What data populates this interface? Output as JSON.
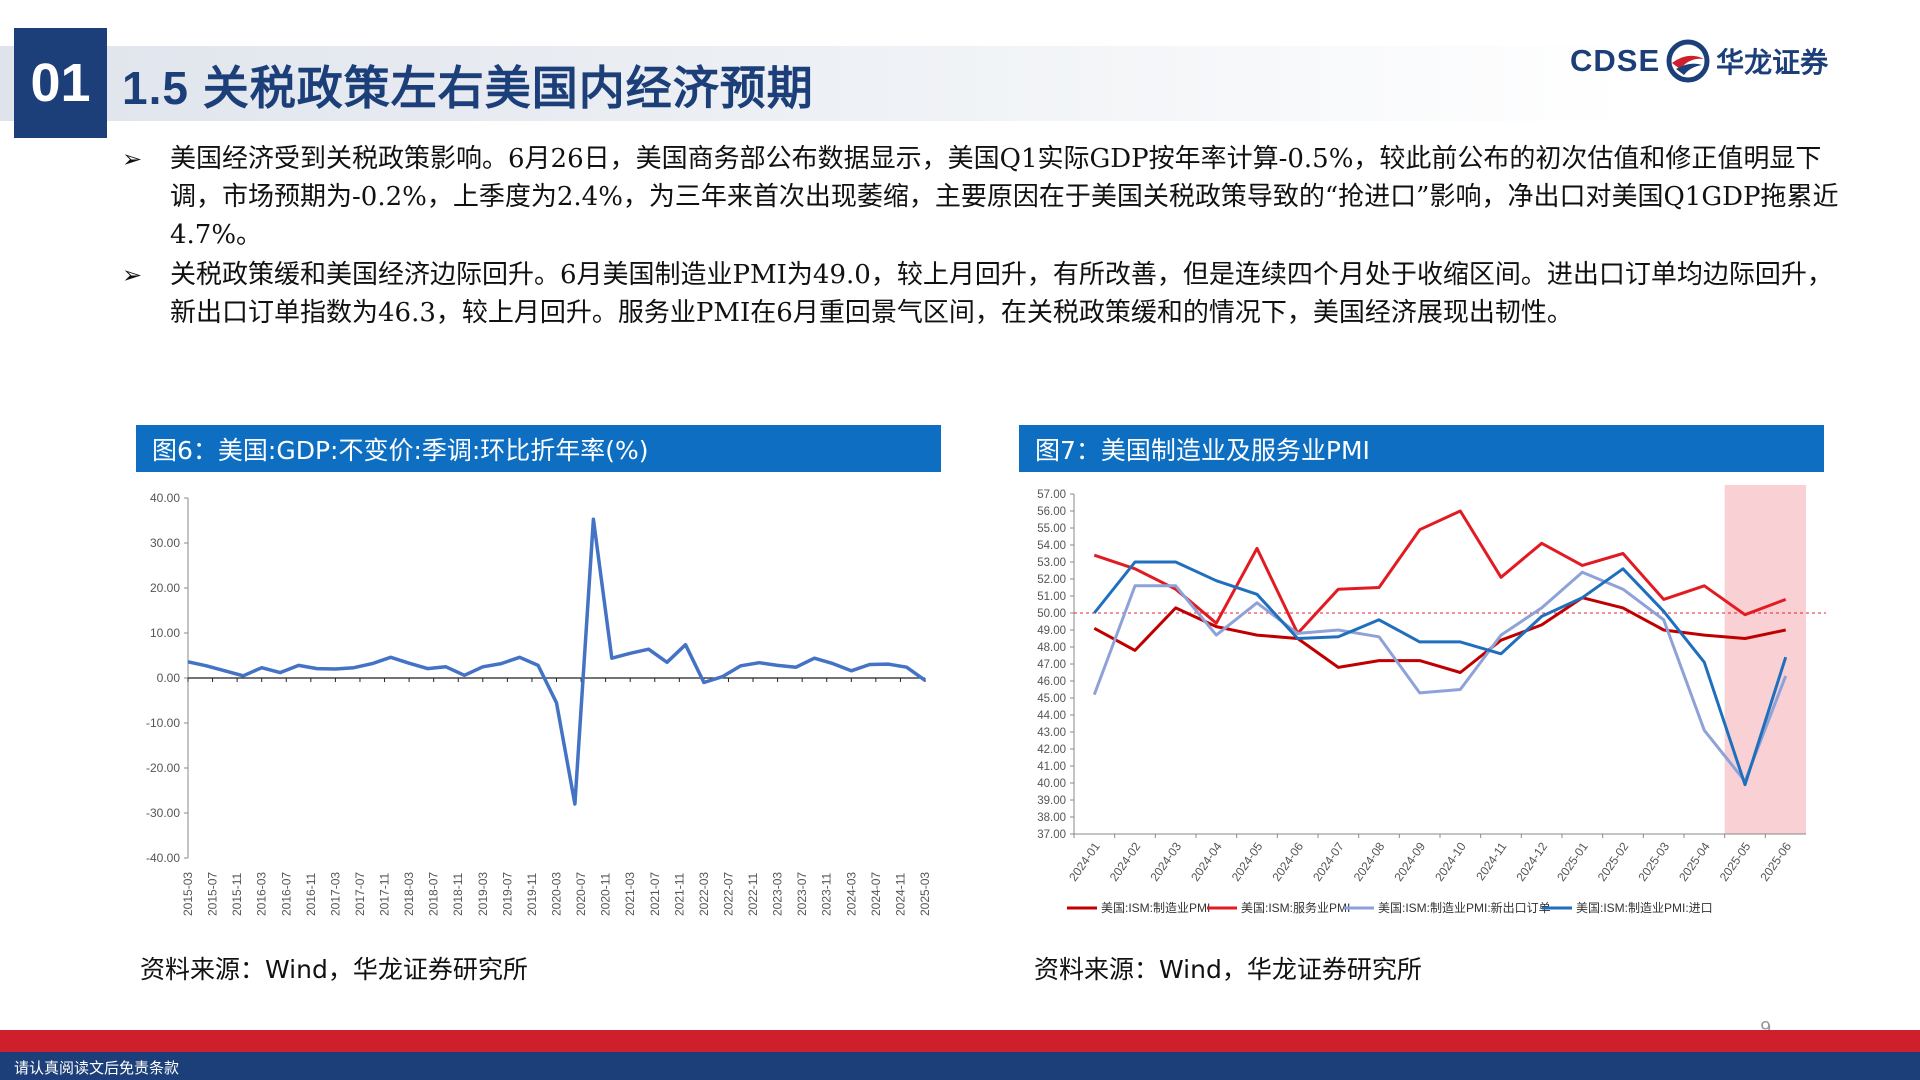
{
  "header": {
    "section_number": "01",
    "title": "1.5 关税政策左右美国内经济预期",
    "logo_text": "CDSE",
    "logo_cn": "华龙证券"
  },
  "bullets": [
    {
      "mark": "➢",
      "text": "美国经济受到关税政策影响。6月26日，美国商务部公布数据显示，美国Q1实际GDP按年率计算-0.5%，较此前公布的初次估值和修正值明显下调，市场预期为-0.2%，上季度为2.4%，为三年来首次出现萎缩，主要原因在于美国关税政策导致的“抢进口”影响，净出口对美国Q1GDP拖累近4.7%。"
    },
    {
      "mark": "➢",
      "text": "关税政策缓和美国经济边际回升。6月美国制造业PMI为49.0，较上月回升，有所改善，但是连续四个月处于收缩区间。进出口订单均边际回升，新出口订单指数为46.3，较上月回升。服务业PMI在6月重回景气区间，在关税政策缓和的情况下，美国经济展现出韧性。"
    }
  ],
  "colors": {
    "navy": "#1d3f79",
    "header_blue": "#0e6fc2",
    "line_blue": "#4472c4",
    "red": "#cf1f2d",
    "dark_red": "#c00000",
    "bright_red": "#e21b23",
    "light_purple": "#8fa2d8",
    "pmi_blue": "#1f6fbd",
    "shade": "#f9d0d3"
  },
  "chart_data": [
    {
      "type": "line",
      "title": "图6：美国:GDP:不变价:季调:环比折年率(%)",
      "ylim": [
        -40,
        40
      ],
      "yticks": [
        "40.00",
        "30.00",
        "20.00",
        "10.00",
        "0.00",
        "-10.00",
        "-20.00",
        "-30.00",
        "-40.00"
      ],
      "xtick_labels": [
        "2015-03",
        "2015-07",
        "2015-11",
        "2016-03",
        "2016-07",
        "2016-11",
        "2017-03",
        "2017-07",
        "2017-11",
        "2018-03",
        "2018-07",
        "2018-11",
        "2019-03",
        "2019-07",
        "2019-11",
        "2020-03",
        "2020-07",
        "2020-11",
        "2021-03",
        "2021-07",
        "2021-11",
        "2022-03",
        "2022-07",
        "2022-11",
        "2023-03",
        "2023-07",
        "2023-11",
        "2024-03",
        "2024-07",
        "2024-11",
        "2025-03"
      ],
      "x": [
        "2015-03",
        "2015-06",
        "2015-09",
        "2015-12",
        "2016-03",
        "2016-06",
        "2016-09",
        "2016-12",
        "2017-03",
        "2017-06",
        "2017-09",
        "2017-12",
        "2018-03",
        "2018-06",
        "2018-09",
        "2018-12",
        "2019-03",
        "2019-06",
        "2019-09",
        "2019-12",
        "2020-03",
        "2020-06",
        "2020-09",
        "2020-12",
        "2021-03",
        "2021-06",
        "2021-09",
        "2021-12",
        "2022-03",
        "2022-06",
        "2022-09",
        "2022-12",
        "2023-03",
        "2023-06",
        "2023-09",
        "2023-12",
        "2024-03",
        "2024-06",
        "2024-09",
        "2024-12",
        "2025-03"
      ],
      "series": [
        {
          "values": [
            3.6,
            2.7,
            1.6,
            0.5,
            2.3,
            1.2,
            2.8,
            2.1,
            2.0,
            2.3,
            3.2,
            4.6,
            3.3,
            2.1,
            2.5,
            0.6,
            2.5,
            3.2,
            4.6,
            2.8,
            -5.5,
            -28.0,
            35.3,
            4.4,
            5.5,
            6.4,
            3.5,
            7.4,
            -1.0,
            0.3,
            2.7,
            3.4,
            2.8,
            2.4,
            4.4,
            3.2,
            1.6,
            3.0,
            3.1,
            2.4,
            -0.5
          ]
        }
      ],
      "source": "资料来源：Wind，华龙证券研究所"
    },
    {
      "type": "line",
      "title": "图7：美国制造业及服务业PMI",
      "ylim": [
        37,
        57
      ],
      "yticks": [
        "57.00",
        "56.00",
        "55.00",
        "54.00",
        "53.00",
        "52.00",
        "51.00",
        "50.00",
        "49.00",
        "48.00",
        "47.00",
        "46.00",
        "45.00",
        "44.00",
        "43.00",
        "42.00",
        "41.00",
        "40.00",
        "39.00",
        "38.00",
        "37.00"
      ],
      "categories": [
        "2024-01",
        "2024-02",
        "2024-03",
        "2024-04",
        "2024-05",
        "2024-06",
        "2024-07",
        "2024-08",
        "2024-09",
        "2024-10",
        "2024-11",
        "2024-12",
        "2025-01",
        "2025-02",
        "2025-03",
        "2025-04",
        "2025-05",
        "2025-06"
      ],
      "reference_line": 50,
      "shaded_range": [
        "2025-05",
        "2025-06"
      ],
      "series": [
        {
          "name": "美国:ISM:制造业PMI",
          "color": "#c00000",
          "values": [
            49.1,
            47.8,
            50.3,
            49.2,
            48.7,
            48.5,
            46.8,
            47.2,
            47.2,
            46.5,
            48.4,
            49.3,
            50.9,
            50.3,
            49.0,
            48.7,
            48.5,
            49.0
          ]
        },
        {
          "name": "美国:ISM:服务业PMI",
          "color": "#e21b23",
          "values": [
            53.4,
            52.6,
            51.4,
            49.4,
            53.8,
            48.8,
            51.4,
            51.5,
            54.9,
            56.0,
            52.1,
            54.1,
            52.8,
            53.5,
            50.8,
            51.6,
            49.9,
            50.8
          ]
        },
        {
          "name": "美国:ISM:制造业PMI:新出口订单",
          "color": "#8fa2d8",
          "values": [
            45.2,
            51.6,
            51.6,
            48.7,
            50.6,
            48.8,
            49.0,
            48.6,
            45.3,
            45.5,
            48.7,
            50.3,
            52.4,
            51.4,
            49.6,
            43.1,
            40.1,
            46.3
          ]
        },
        {
          "name": "美国:ISM:制造业PMI:进口",
          "color": "#1f6fbd",
          "values": [
            50.0,
            53.0,
            53.0,
            51.9,
            51.1,
            48.5,
            48.6,
            49.6,
            48.3,
            48.3,
            47.6,
            49.8,
            50.9,
            52.6,
            50.1,
            47.1,
            39.9,
            47.4
          ]
        }
      ],
      "source": "资料来源：Wind，华龙证券研究所"
    }
  ],
  "footer": {
    "page_number": "9",
    "disclaimer": "请认真阅读文后免责条款"
  }
}
